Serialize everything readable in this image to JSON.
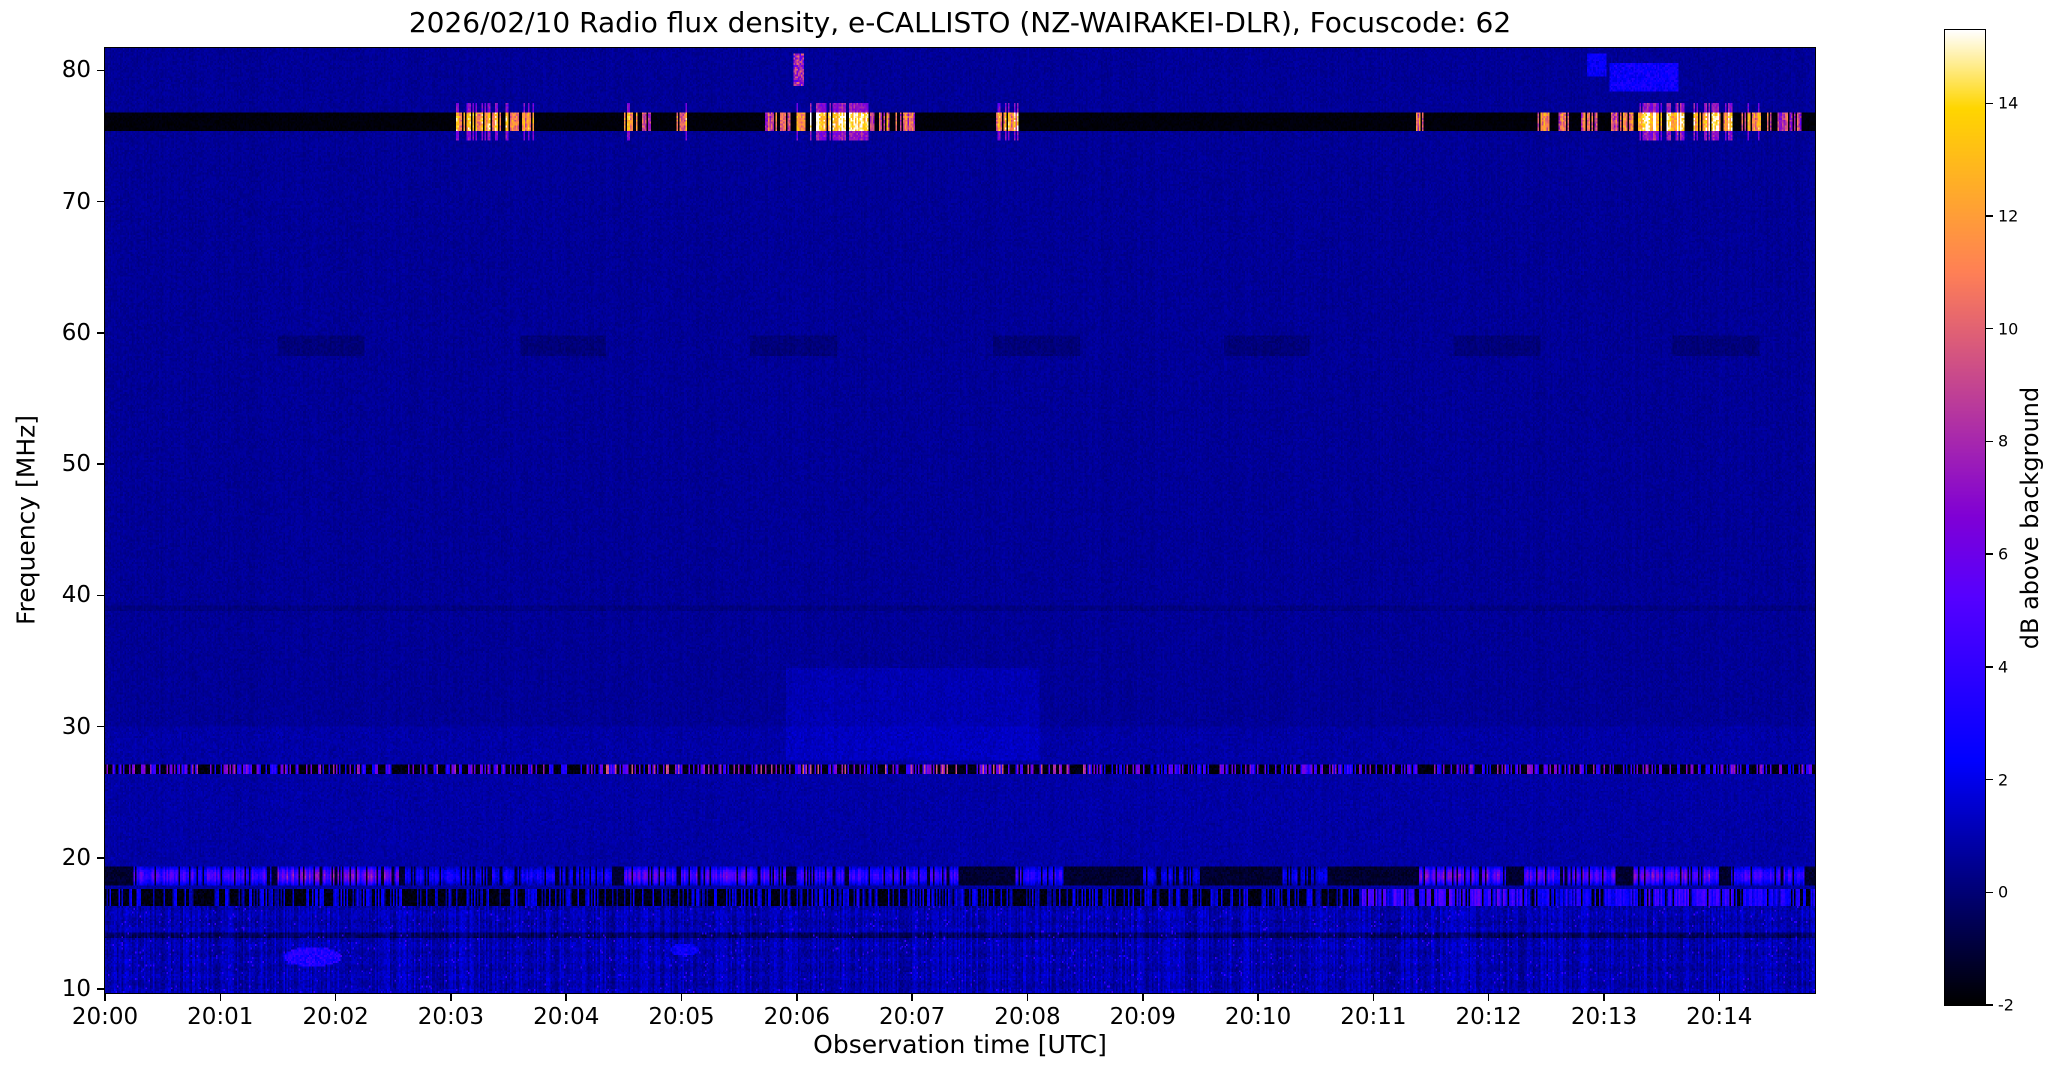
{
  "chart_data": {
    "type": "heatmap",
    "title": "2026/02/10  Radio flux density, e-CALLISTO (NZ-WAIRAKEI-DLR), Focuscode: 62",
    "xlabel": "Observation time [UTC]",
    "ylabel": "Frequency [MHz]",
    "x_tick_labels": [
      "20:00",
      "20:01",
      "20:02",
      "20:03",
      "20:04",
      "20:05",
      "20:06",
      "20:07",
      "20:08",
      "20:09",
      "20:10",
      "20:11",
      "20:12",
      "20:13",
      "20:14"
    ],
    "x_range_minutes": [
      0,
      14.83
    ],
    "y_ticks_mhz": [
      10,
      20,
      30,
      40,
      50,
      60,
      70,
      80
    ],
    "y_range_mhz": [
      9.7,
      81.7
    ],
    "grid": false,
    "legend": "none",
    "colorbar": {
      "label": "dB above background",
      "ticks": [
        -2,
        0,
        2,
        4,
        6,
        8,
        10,
        12,
        14
      ],
      "vmin": -2,
      "vmax": 15.3,
      "colormap": "gnuplot2",
      "position": "right"
    },
    "background": {
      "base_db": 0.55,
      "noise_db": 0.3,
      "below_30mhz_extra_db": 0.25
    },
    "features": {
      "rfi_black_band_mhz": [
        75.3,
        76.85
      ],
      "rfi_band_bursts": [
        {
          "t": [
            3.05,
            3.72
          ],
          "db": 12
        },
        {
          "t": [
            4.5,
            4.62
          ],
          "db": 12
        },
        {
          "t": [
            4.66,
            4.74
          ],
          "db": 10
        },
        {
          "t": [
            4.95,
            5.05
          ],
          "db": 11
        },
        {
          "t": [
            5.72,
            5.95
          ],
          "db": 10
        },
        {
          "t": [
            5.98,
            6.08
          ],
          "db": 13
        },
        {
          "t": [
            6.1,
            6.62
          ],
          "db": 14.5
        },
        {
          "t": [
            6.64,
            6.8
          ],
          "db": 10
        },
        {
          "t": [
            6.85,
            7.02
          ],
          "db": 9
        },
        {
          "t": [
            7.7,
            7.92
          ],
          "db": 12
        },
        {
          "t": [
            11.32,
            11.44
          ],
          "db": 10
        },
        {
          "t": [
            12.42,
            12.55
          ],
          "db": 11
        },
        {
          "t": [
            12.6,
            12.72
          ],
          "db": 10
        },
        {
          "t": [
            12.8,
            12.95
          ],
          "db": 9
        },
        {
          "t": [
            13.05,
            13.25
          ],
          "db": 10
        },
        {
          "t": [
            13.3,
            13.7
          ],
          "db": 14.5
        },
        {
          "t": [
            13.78,
            14.12
          ],
          "db": 13.5
        },
        {
          "t": [
            14.18,
            14.45
          ],
          "db": 11
        },
        {
          "t": [
            14.5,
            14.72
          ],
          "db": 9
        }
      ],
      "top_spots": [
        {
          "t": [
            5.97,
            6.06
          ],
          "f": [
            78.8,
            81.2
          ],
          "db": 9
        },
        {
          "t": [
            12.85,
            13.02
          ],
          "f": [
            79.6,
            81.2
          ],
          "db": 2.8
        },
        {
          "t": [
            13.05,
            13.65
          ],
          "f": [
            78.4,
            80.6
          ],
          "db": 3.2
        }
      ],
      "speckle_line_27mhz": {
        "f": [
          26.35,
          27.15
        ],
        "base_db": -1.8,
        "speckle_db": [
          2,
          7.5
        ],
        "density": 0.45,
        "hot_t": [
          [
            0,
            3.2,
            1.1
          ],
          [
            4.3,
            8.6,
            1.3
          ],
          [
            10.9,
            12.3,
            1.1
          ]
        ]
      },
      "blob_band_18mhz": {
        "f": [
          17.9,
          19.35
        ],
        "base_db": -1.6,
        "blobs": [
          {
            "t": [
              0.25,
              1.45
            ],
            "db": 5
          },
          {
            "t": [
              1.5,
              2.55
            ],
            "db": 6.5
          },
          {
            "t": [
              2.6,
              4.4
            ],
            "db": 3
          },
          {
            "t": [
              4.5,
              5.9
            ],
            "db": 5.5
          },
          {
            "t": [
              6.0,
              7.4
            ],
            "db": 4.5
          },
          {
            "t": [
              7.9,
              8.35
            ],
            "db": 4
          },
          {
            "t": [
              9.0,
              9.5
            ],
            "db": 2.5
          },
          {
            "t": [
              10.2,
              10.6
            ],
            "db": 2.5
          },
          {
            "t": [
              11.4,
              12.15
            ],
            "db": 6
          },
          {
            "t": [
              12.3,
              13.1
            ],
            "db": 5.5
          },
          {
            "t": [
              13.25,
              14.0
            ],
            "db": 6
          },
          {
            "t": [
              14.1,
              14.75
            ],
            "db": 4.5
          }
        ]
      },
      "dash_band_17mhz": {
        "f": [
          16.35,
          17.6
        ],
        "base_db": -1.7,
        "speckle_db": [
          0.5,
          3
        ],
        "density": 0.4,
        "hot_spots": [
          {
            "t": [
              10.9,
              12.35
            ],
            "db": 5.5
          },
          {
            "t": [
              12.4,
              13.3
            ],
            "db": 3.5
          },
          {
            "t": [
              13.35,
              14.15
            ],
            "db": 5
          },
          {
            "t": [
              14.2,
              14.83
            ],
            "db": 3.5
          }
        ]
      },
      "striation_region": {
        "f": [
          9.7,
          16.35
        ],
        "base_db": 0.45,
        "col_var_db": 1.3,
        "pix_noise_db": 0.55,
        "dark_rows": [
          [
            13.85,
            14.3
          ]
        ],
        "pink_blobs": [
          {
            "t": [
              1.55,
              2.05
            ],
            "f": [
              11.7,
              13.2
            ],
            "db": 4.2
          },
          {
            "t": [
              4.9,
              5.15
            ],
            "f": [
              12.5,
              13.5
            ],
            "db": 3.2
          }
        ]
      },
      "dark_patches_59mhz": {
        "f": [
          58.2,
          59.8
        ],
        "delta_db": -0.5,
        "t_list": [
          [
            1.5,
            2.25
          ],
          [
            3.6,
            4.35
          ],
          [
            5.6,
            6.35
          ],
          [
            7.7,
            8.45
          ],
          [
            9.7,
            10.45
          ],
          [
            11.7,
            12.45
          ],
          [
            13.6,
            14.35
          ]
        ]
      },
      "haze_30mhz": {
        "t": [
          5.9,
          8.1
        ],
        "f": [
          27.4,
          34.5
        ],
        "delta_db": 0.45
      },
      "dark_line_39mhz": {
        "f": [
          38.75,
          39.15
        ],
        "delta_db": -0.35
      }
    }
  }
}
